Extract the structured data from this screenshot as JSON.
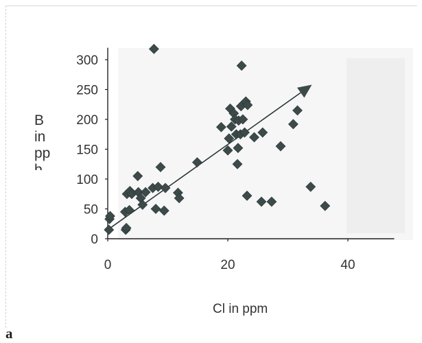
{
  "chart_data": {
    "type": "scatter",
    "title": "",
    "xlabel": "Cl in ppm",
    "ylabel_lines": [
      "B",
      "in",
      "pp",
      "b"
    ],
    "xlim": [
      0,
      50
    ],
    "ylim": [
      0,
      320
    ],
    "xticks": [
      0,
      20,
      40
    ],
    "yticks": [
      0,
      50,
      100,
      150,
      200,
      250,
      300
    ],
    "grid": false,
    "marker": "diamond",
    "marker_color": "#3d4a4a",
    "series": [
      {
        "points": [
          [
            0.2,
            15
          ],
          [
            0.3,
            33
          ],
          [
            0.4,
            38
          ],
          [
            2.9,
            45
          ],
          [
            3.0,
            15
          ],
          [
            3.1,
            18
          ],
          [
            3.2,
            75
          ],
          [
            3.6,
            48
          ],
          [
            3.7,
            80
          ],
          [
            4.0,
            75
          ],
          [
            5.0,
            105
          ],
          [
            5.1,
            78
          ],
          [
            5.5,
            68
          ],
          [
            5.8,
            57
          ],
          [
            6.3,
            78
          ],
          [
            7.5,
            85
          ],
          [
            7.7,
            318
          ],
          [
            8.0,
            50
          ],
          [
            8.4,
            87
          ],
          [
            8.8,
            120
          ],
          [
            9.4,
            47
          ],
          [
            9.6,
            85
          ],
          [
            11.7,
            77
          ],
          [
            11.9,
            68
          ],
          [
            14.9,
            128
          ],
          [
            18.9,
            187
          ],
          [
            20.0,
            148
          ],
          [
            20.2,
            168
          ],
          [
            20.4,
            218
          ],
          [
            20.6,
            188
          ],
          [
            21.0,
            210
          ],
          [
            21.2,
            200
          ],
          [
            21.4,
            175
          ],
          [
            21.6,
            125
          ],
          [
            21.7,
            152
          ],
          [
            21.8,
            198
          ],
          [
            22.1,
            175
          ],
          [
            22.2,
            222
          ],
          [
            22.3,
            290
          ],
          [
            22.5,
            200
          ],
          [
            22.8,
            178
          ],
          [
            23.0,
            230
          ],
          [
            23.2,
            72
          ],
          [
            23.3,
            224
          ],
          [
            24.4,
            170
          ],
          [
            25.6,
            62
          ],
          [
            25.8,
            178
          ],
          [
            27.3,
            62
          ],
          [
            28.8,
            155
          ],
          [
            30.9,
            192
          ],
          [
            31.6,
            215
          ],
          [
            33.8,
            87
          ],
          [
            36.2,
            55
          ]
        ]
      }
    ],
    "trend_arrow": {
      "from": [
        0,
        15
      ],
      "to": [
        34,
        258
      ]
    },
    "annotations": [
      "a"
    ]
  }
}
